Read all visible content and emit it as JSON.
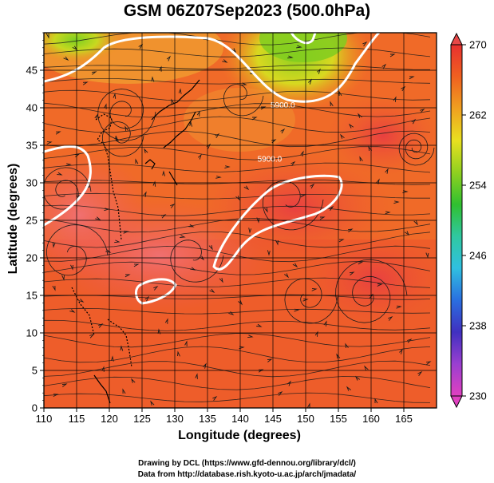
{
  "header": {
    "title": "GSM 06Z07Sep2023 (500.0hPa)"
  },
  "footer": {
    "credit_line1": "Drawing by DCL (https://www.gfd-dennou.org/library/dcl/)",
    "credit_line2": "Data from http://database.rish.kyoto-u.ac.jp/arch/jmadata/"
  },
  "chart_data": {
    "type": "heatmap",
    "title": "GSM 06Z07Sep2023 (500.0hPa)",
    "xlabel": "Longitude (degrees)",
    "ylabel": "Latitude  (degrees)",
    "xlim": [
      110,
      170
    ],
    "ylim": [
      0,
      50
    ],
    "x_ticks": [
      110,
      115,
      120,
      125,
      130,
      135,
      140,
      145,
      150,
      155,
      160,
      165
    ],
    "y_ticks": [
      0,
      5,
      10,
      15,
      20,
      25,
      30,
      35,
      40,
      45
    ],
    "grid": true,
    "overlays": [
      "streamlines",
      "coastlines",
      "geopotential height contours"
    ],
    "contour_labels": [
      {
        "text": "5900.0",
        "lon": 144.5,
        "lat": 32.8
      },
      {
        "text": "5900.0",
        "lon": 146.5,
        "lat": 40.0
      }
    ],
    "colorbar": {
      "min": 230,
      "max": 270,
      "ticks": [
        230,
        238,
        246,
        254,
        262,
        270
      ],
      "colors": [
        "#e040c0",
        "#9a3fd0",
        "#4030c0",
        "#2a6fe0",
        "#30c0e0",
        "#30c8a0",
        "#30c030",
        "#90d020",
        "#e8e020",
        "#f0a020",
        "#f06020",
        "#e83030"
      ]
    },
    "field_notes": "Temperature field mostly 264-270 (orange to red); yellow-green (~256-260) in the north near 125 E and 145-155 E."
  }
}
